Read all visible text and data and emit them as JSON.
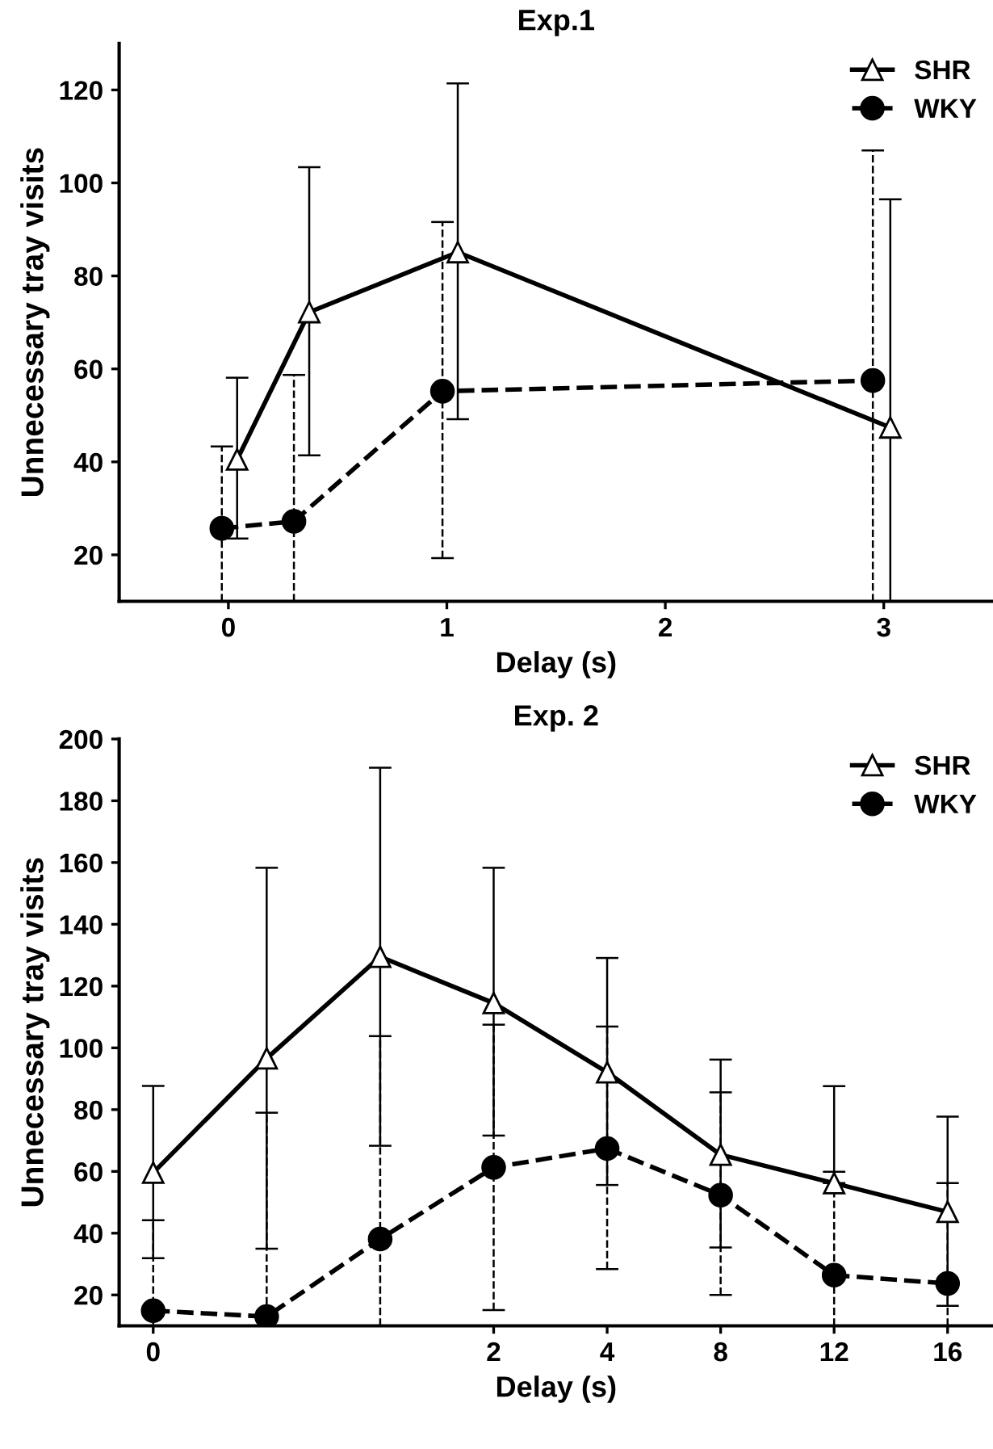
{
  "chart_data": [
    {
      "type": "line",
      "title": "Exp.1",
      "xlabel": "Delay (s)",
      "ylabel": "Unnecessary tray visits",
      "xlim": [
        -0.5,
        3.5
      ],
      "xticks": [
        0,
        1,
        2,
        3
      ],
      "ylim": [
        10,
        130
      ],
      "yticks": [
        20,
        40,
        60,
        80,
        100,
        120
      ],
      "grid": false,
      "legend": "top right",
      "series": [
        {
          "name": "SHR",
          "color": "#000000",
          "marker": "triangle",
          "line_style": "solid",
          "x": [
            0.04,
            0.37,
            1.05,
            3.03
          ],
          "values": [
            40.5,
            72.2,
            85.1,
            47.4
          ],
          "errors": [
            [
              23.5,
              58.1
            ],
            [
              41.4,
              103.4
            ],
            [
              49.2,
              121.4
            ],
            [
              10,
              96.5
            ]
          ]
        },
        {
          "name": "WKY",
          "color": "#000000",
          "marker": "circle",
          "line_style": "dashed",
          "x": [
            -0.03,
            0.3,
            0.98,
            2.95
          ],
          "values": [
            25.7,
            27.2,
            55.2,
            57.5
          ],
          "errors": [
            [
              10,
              43.3
            ],
            [
              10,
              58.7
            ],
            [
              19.3,
              91.6
            ],
            [
              10,
              107
            ]
          ]
        }
      ]
    },
    {
      "type": "line",
      "title": "Exp. 2",
      "xlabel": "Delay (s)",
      "ylabel": "Unnecessary tray visits",
      "categories": [
        "0",
        null,
        null,
        "2",
        "4",
        "8",
        "12",
        "16"
      ],
      "ylim": [
        10,
        200
      ],
      "yticks": [
        20,
        40,
        60,
        80,
        100,
        120,
        140,
        160,
        180,
        200
      ],
      "grid": false,
      "legend": "top right",
      "series": [
        {
          "name": "SHR",
          "color": "#000000",
          "marker": "triangle",
          "line_style": "solid",
          "values": [
            59.6,
            96.6,
            129.5,
            114.5,
            92.1,
            65.4,
            56.2,
            46.9
          ],
          "errors": [
            [
              31.9,
              87.7
            ],
            [
              35,
              158.3
            ],
            [
              68.3,
              190.7
            ],
            [
              71.6,
              158.3
            ],
            [
              55.6,
              129.1
            ],
            [
              35.4,
              96.2
            ],
            [
              56.2,
              87.6
            ],
            [
              16.5,
              77.7
            ]
          ]
        },
        {
          "name": "WKY",
          "color": "#000000",
          "marker": "circle",
          "line_style": "dashed",
          "values": [
            14.9,
            13.0,
            38.1,
            61.3,
            67.4,
            52.3,
            26.4,
            23.7
          ],
          "errors": [
            [
              10,
              44.2
            ],
            [
              10,
              79
            ],
            [
              10,
              103.8
            ],
            [
              15.1,
              107.5
            ],
            [
              28.4,
              106.9
            ],
            [
              20,
              85.6
            ],
            [
              10,
              59.9
            ],
            [
              10,
              56.2
            ]
          ]
        }
      ]
    }
  ]
}
